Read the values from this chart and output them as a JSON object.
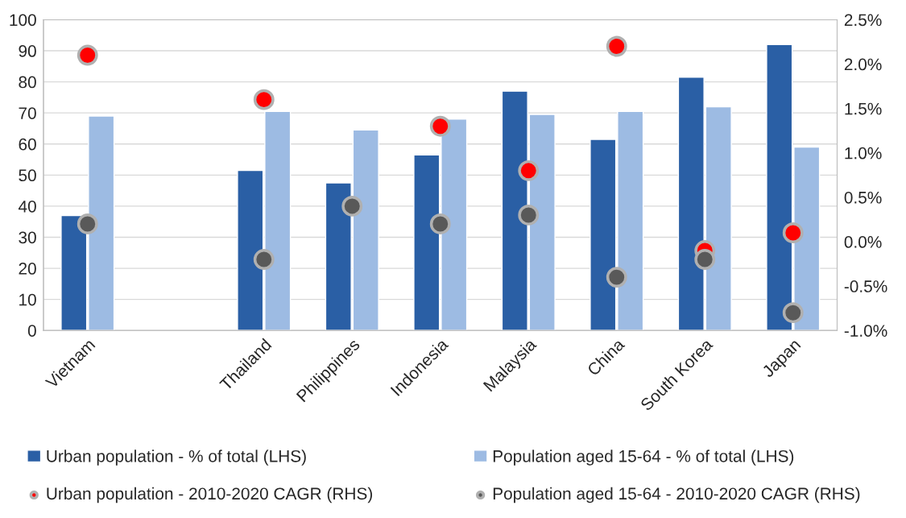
{
  "chart_data": {
    "type": "bar",
    "categories": [
      "Vietnam",
      null,
      "Thailand",
      "Philippines",
      "Indonesia",
      "Malaysia",
      "China",
      "South Korea",
      "Japan"
    ],
    "series": [
      {
        "name": "Urban population - % of total (LHS)",
        "color": "#2a5fa5",
        "values": [
          37,
          null,
          51.5,
          47.5,
          56.5,
          77,
          61.5,
          81.5,
          92
        ]
      },
      {
        "name": "Population aged 15-64 - % of total (LHS)",
        "color": "#9dbbe3",
        "values": [
          69,
          null,
          70.5,
          64.5,
          68,
          69.5,
          70.5,
          72,
          59
        ]
      },
      {
        "name": "Urban population - 2010-2020 CAGR (RHS)",
        "type": "scatter",
        "axis": "y2",
        "color": "#ff0000",
        "values": [
          2.1,
          null,
          1.6,
          null,
          1.3,
          0.8,
          2.2,
          -0.1,
          0.1
        ]
      },
      {
        "name": "Population aged 15-64 - 2010-2020 CAGR (RHS)",
        "type": "scatter",
        "axis": "y2",
        "color": "#595959",
        "values": [
          0.2,
          null,
          -0.2,
          0.4,
          0.2,
          0.3,
          -0.4,
          -0.2,
          -0.8
        ]
      }
    ],
    "ylim": [
      0,
      100
    ],
    "yticks": [
      0,
      10,
      20,
      30,
      40,
      50,
      60,
      70,
      80,
      90,
      100
    ],
    "y2lim": [
      -1.0,
      2.5
    ],
    "y2ticks": [
      {
        "value": -1.0,
        "label": "-1.0%"
      },
      {
        "value": -0.5,
        "label": "-0.5%"
      },
      {
        "value": 0,
        "label": "0.0%"
      },
      {
        "value": 0.5,
        "label": "0.5%"
      },
      {
        "value": 1.0,
        "label": "1.0%"
      },
      {
        "value": 1.5,
        "label": "1.5%"
      },
      {
        "value": 2.0,
        "label": "2.0%"
      },
      {
        "value": 2.5,
        "label": "2.5%"
      }
    ],
    "grid": "y",
    "legend": "bottom",
    "marker": "circle"
  }
}
